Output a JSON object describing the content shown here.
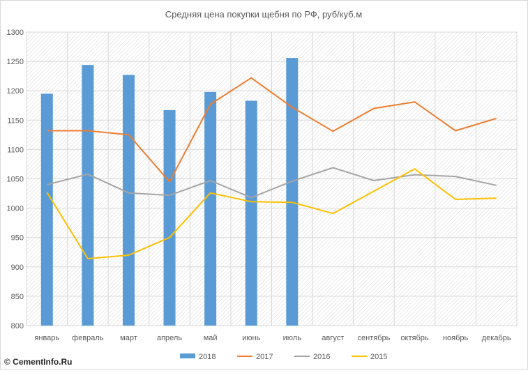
{
  "chart_data": {
    "type": "bar+line",
    "title": "Средняя цена покупки щебня по РФ, руб/куб.м",
    "categories": [
      "январь",
      "февраль",
      "март",
      "апрель",
      "май",
      "июнь",
      "июль",
      "август",
      "сентябрь",
      "октябрь",
      "ноябрь",
      "декабрь"
    ],
    "ylim": [
      800,
      1300
    ],
    "yticks": [
      800,
      850,
      900,
      950,
      1000,
      1050,
      1100,
      1150,
      1200,
      1250,
      1300
    ],
    "grid": true,
    "legend_position": "bottom",
    "bar_series": {
      "name": "2018",
      "color": "#5b9bd5",
      "values": [
        1195,
        1244,
        1227,
        1167,
        1198,
        1183,
        1256
      ]
    },
    "line_series": [
      {
        "name": "2017",
        "color": "#ed7d31",
        "values": [
          1132,
          1132,
          1125,
          1045,
          1177,
          1222,
          1172,
          1131,
          1170,
          1181,
          1132,
          1153
        ]
      },
      {
        "name": "2016",
        "color": "#a5a5a5",
        "values": [
          1040,
          1058,
          1026,
          1022,
          1047,
          1018,
          1046,
          1069,
          1047,
          1057,
          1054,
          1039
        ]
      },
      {
        "name": "2015",
        "color": "#ffc000",
        "values": [
          1027,
          914,
          920,
          950,
          1026,
          1011,
          1010,
          991,
          1029,
          1067,
          1015,
          1017
        ]
      }
    ]
  },
  "watermark": "© CementInfo.Ru"
}
